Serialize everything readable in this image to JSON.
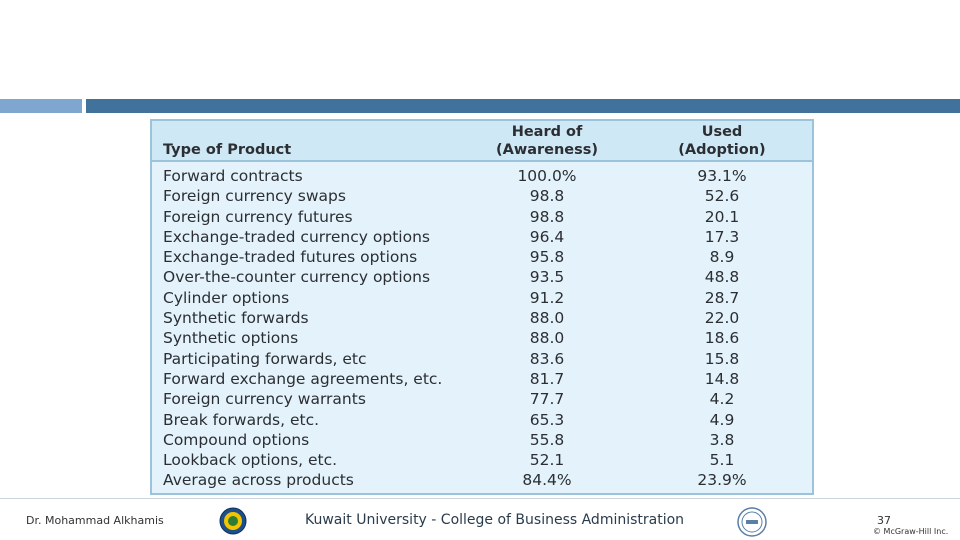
{
  "table": {
    "header": {
      "product": "Type of Product",
      "awareness_line1": "Heard of",
      "awareness_line2": "(Awareness)",
      "used_line1": "Used",
      "used_line2": "(Adoption)"
    },
    "rows": [
      {
        "product": "Forward contracts",
        "awareness": "100.0%",
        "used": "93.1%"
      },
      {
        "product": "Foreign currency swaps",
        "awareness": "98.8",
        "used": "52.6"
      },
      {
        "product": "Foreign currency futures",
        "awareness": "98.8",
        "used": "20.1"
      },
      {
        "product": "Exchange-traded currency options",
        "awareness": "96.4",
        "used": "17.3"
      },
      {
        "product": "Exchange-traded futures options",
        "awareness": "95.8",
        "used": "8.9"
      },
      {
        "product": "Over-the-counter currency options",
        "awareness": "93.5",
        "used": "48.8"
      },
      {
        "product": "Cylinder options",
        "awareness": "91.2",
        "used": "28.7"
      },
      {
        "product": "Synthetic forwards",
        "awareness": "88.0",
        "used": "22.0"
      },
      {
        "product": "Synthetic options",
        "awareness": "88.0",
        "used": "18.6"
      },
      {
        "product": "Participating forwards, etc",
        "awareness": "83.6",
        "used": "15.8"
      },
      {
        "product": "Forward exchange agreements, etc.",
        "awareness": "81.7",
        "used": "14.8"
      },
      {
        "product": "Foreign currency warrants",
        "awareness": "77.7",
        "used": "4.2"
      },
      {
        "product": "Break forwards, etc.",
        "awareness": "65.3",
        "used": "4.9"
      },
      {
        "product": "Compound options",
        "awareness": "55.8",
        "used": "3.8"
      },
      {
        "product": "Lookback options, etc.",
        "awareness": "52.1",
        "used": "5.1"
      },
      {
        "product": "Average across products",
        "awareness": "84.4%",
        "used": "23.9%"
      }
    ]
  },
  "footer": {
    "author": "Dr. Mohammad Alkhamis",
    "institution": "Kuwait University - College of Business Administration",
    "page_number": "37",
    "copyright": "© McGraw-Hill Inc."
  },
  "colors": {
    "accent_light": "#7ea6cf",
    "accent_dark": "#41729c",
    "table_bg": "#e4f3fb",
    "table_header_bg": "#cfe8f5"
  }
}
